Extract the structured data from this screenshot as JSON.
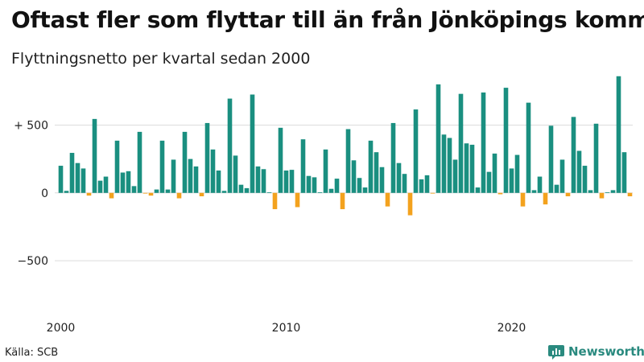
{
  "title": "Oftast fler som flyttar till än från Jönköpings kommun",
  "subtitle": "Flyttningsnetto per kvartal sedan 2000",
  "source": "Källa: SCB",
  "brand": {
    "name": "Newsworthy",
    "icon": "bar-chart-logo-icon",
    "color": "#2a8a7f"
  },
  "chart_data": {
    "type": "bar",
    "title": "Oftast fler som flyttar till än från Jönköpings kommun",
    "subtitle": "Flyttningsnetto per kvartal sedan 2000",
    "xlabel": "",
    "ylabel": "",
    "ylim": [
      -950,
      900
    ],
    "yticks": [
      {
        "value": 500,
        "label": "+ 500"
      },
      {
        "value": 0,
        "label": "0"
      },
      {
        "value": -500,
        "label": "−500"
      }
    ],
    "xticks": [
      {
        "index": 0,
        "label": "2000"
      },
      {
        "index": 40,
        "label": "2010"
      },
      {
        "index": 80,
        "label": "2020"
      }
    ],
    "positive_color": "#1a8f80",
    "negative_color": "#f3a21e",
    "grid": "horizontal",
    "legend": "none",
    "values": [
      200,
      15,
      295,
      220,
      180,
      -20,
      545,
      90,
      120,
      -40,
      385,
      150,
      160,
      50,
      450,
      -5,
      -20,
      25,
      385,
      25,
      245,
      -40,
      450,
      250,
      195,
      -25,
      515,
      320,
      165,
      15,
      695,
      275,
      60,
      35,
      725,
      195,
      175,
      0,
      -120,
      480,
      165,
      170,
      -105,
      395,
      125,
      115,
      5,
      320,
      30,
      105,
      -120,
      470,
      240,
      110,
      40,
      385,
      300,
      190,
      -100,
      515,
      220,
      140,
      -165,
      615,
      100,
      130,
      -5,
      800,
      430,
      405,
      245,
      730,
      365,
      355,
      40,
      740,
      155,
      290,
      -10,
      775,
      180,
      280,
      -100,
      665,
      20,
      120,
      -85,
      495,
      60,
      245,
      -25,
      560,
      310,
      200,
      20,
      510,
      -40,
      5,
      20,
      860,
      300,
      -25
    ]
  }
}
